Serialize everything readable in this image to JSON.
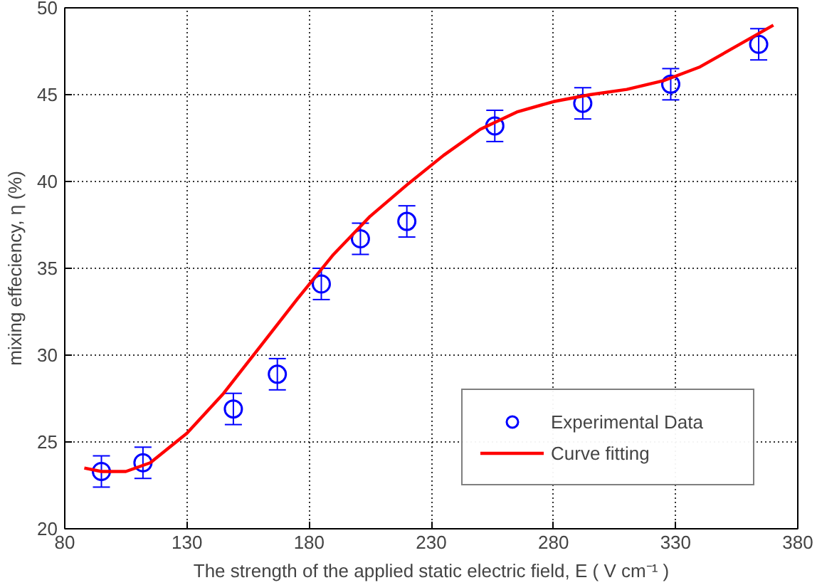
{
  "chart_data": {
    "type": "scatter",
    "xlabel": "The strength of the applied static electric field, E ( V cm⁻¹ )",
    "ylabel": "mixing effeciency, η (%)",
    "xlim": [
      80,
      380
    ],
    "ylim": [
      20,
      50
    ],
    "xticks": [
      80,
      130,
      180,
      230,
      280,
      330,
      380
    ],
    "yticks": [
      20,
      25,
      30,
      35,
      40,
      45,
      50
    ],
    "grid": true,
    "legend": "bottom right",
    "series": [
      {
        "name": "Experimental Data",
        "marker": "circle",
        "color": "#0000ff",
        "x": [
          95,
          112,
          149,
          167,
          185,
          201,
          220,
          256,
          292,
          328,
          364
        ],
        "values": [
          23.3,
          23.8,
          26.9,
          28.9,
          34.1,
          36.7,
          37.7,
          43.2,
          44.5,
          45.6,
          47.9
        ],
        "errors": [
          0.9,
          0.9,
          0.9,
          0.9,
          0.9,
          0.9,
          0.9,
          0.9,
          0.9,
          0.9,
          0.9
        ]
      },
      {
        "name": "Curve fitting",
        "type": "line",
        "line_style": "solid",
        "color": "#ff0000",
        "x": [
          88,
          95,
          105,
          115,
          130,
          145,
          160,
          175,
          190,
          205,
          220,
          235,
          250,
          265,
          280,
          295,
          310,
          325,
          340,
          355,
          370
        ],
        "values": [
          23.5,
          23.3,
          23.3,
          23.8,
          25.5,
          27.8,
          30.5,
          33.2,
          35.8,
          38,
          39.8,
          41.5,
          43,
          44,
          44.6,
          45,
          45.3,
          45.8,
          46.6,
          47.8,
          49
        ]
      }
    ]
  }
}
